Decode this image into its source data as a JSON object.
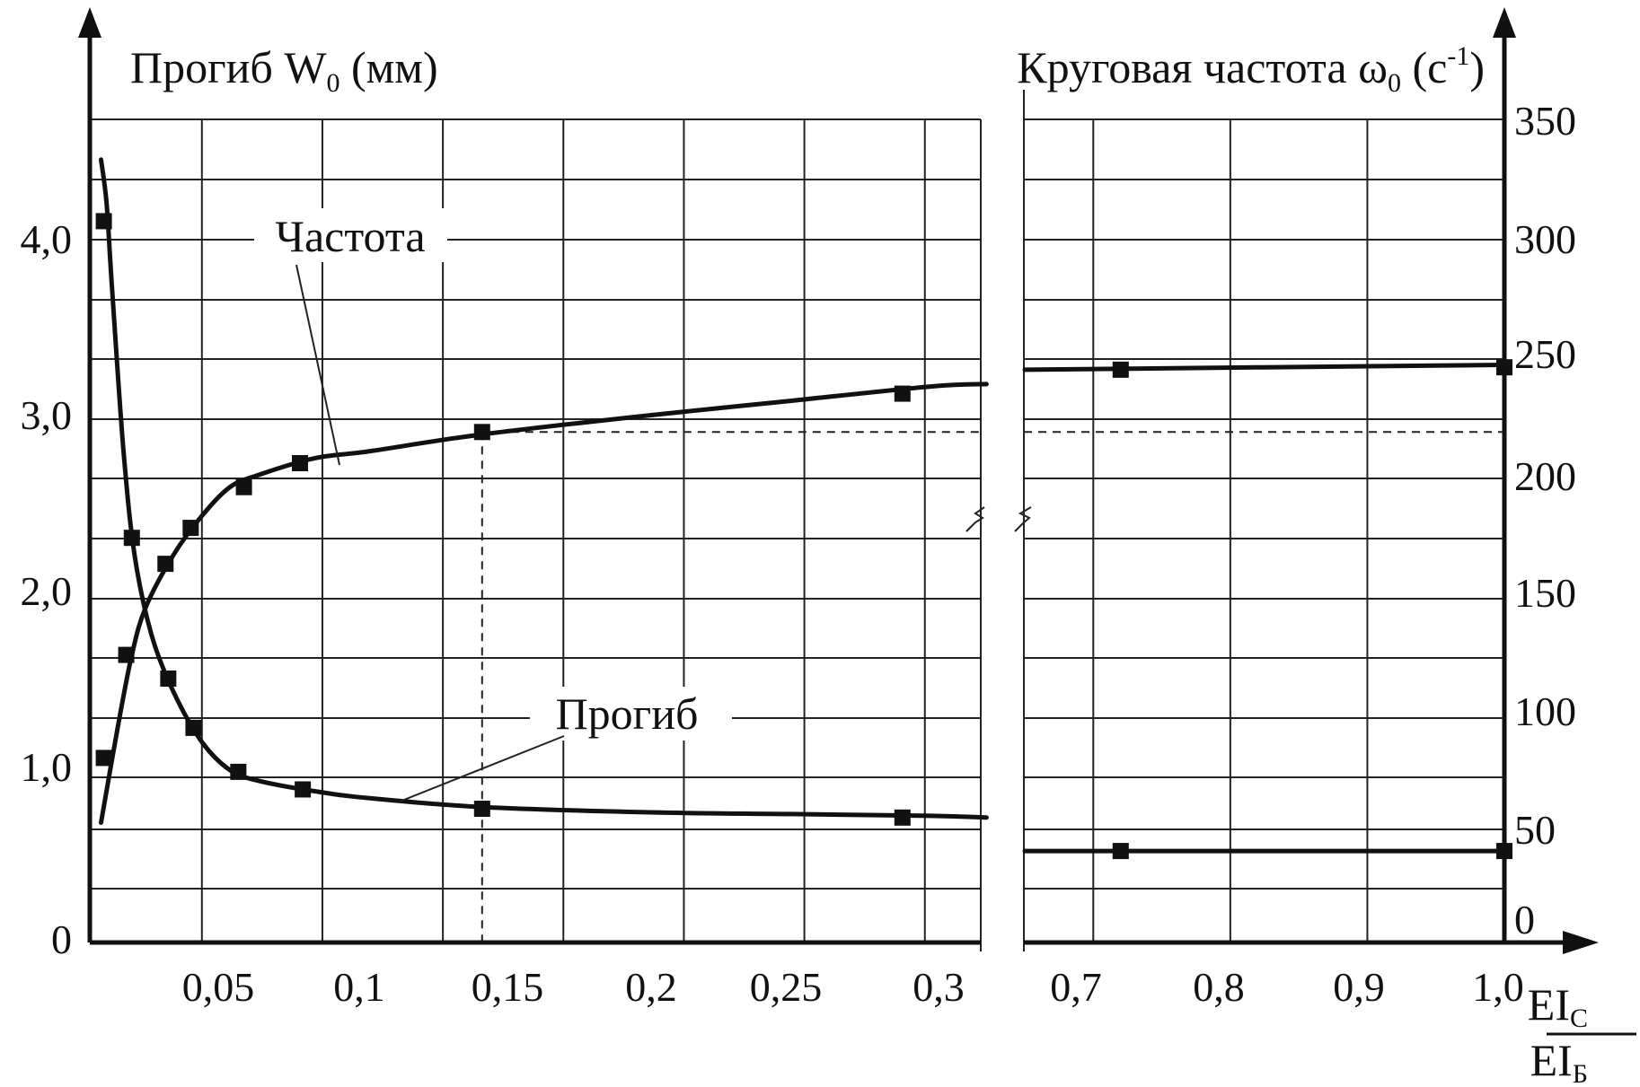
{
  "chart_data": {
    "type": "line",
    "left_axis_title": {
      "text": "Прогиб W",
      "sub": "0",
      "tail": " (мм)"
    },
    "right_axis_title": {
      "text": "Круговая частота ω",
      "sub": "0",
      "mid": " (c",
      "sup": "-1",
      "tail": ")"
    },
    "x_label": {
      "numerator": "EI",
      "numerator_sub": "C",
      "denominator": "EI",
      "denominator_sub": "Б"
    },
    "x_ticks_left": [
      "0,05",
      "0,1",
      "0,15",
      "0,2",
      "0,25",
      "0,3"
    ],
    "x_ticks_right": [
      "0,7",
      "0,8",
      "0,9",
      "1,0"
    ],
    "y_left_ticks": [
      "0",
      "1,0",
      "2,0",
      "3,0",
      "4,0"
    ],
    "y_right_ticks": [
      "0",
      "50",
      "100",
      "150",
      "200",
      "250",
      "300",
      "350"
    ],
    "x_break": [
      0.32,
      0.65
    ],
    "y_left_range": [
      0,
      4.6
    ],
    "y_right_range": [
      0,
      350
    ],
    "series": [
      {
        "name": "Частота",
        "axis": "right",
        "curve_x": [
          0.004,
          0.01,
          0.015,
          0.02,
          0.03,
          0.04,
          0.05,
          0.06,
          0.08,
          0.1,
          0.14,
          0.2,
          0.25,
          0.3,
          0.32
        ],
        "curve_y": [
          50,
          90,
          120,
          140,
          162,
          178,
          190,
          195,
          202,
          205,
          212,
          220,
          226,
          232,
          233
        ],
        "curve_x_right": [
          0.65,
          1.0
        ],
        "curve_y_right": [
          239,
          241
        ],
        "markers_x": [
          0.005,
          0.013,
          0.027,
          0.036,
          0.055,
          0.075,
          0.14,
          0.29,
          0.72,
          1.0
        ],
        "markers_y": [
          77,
          120,
          158,
          173,
          190,
          200,
          213,
          229,
          239,
          240
        ]
      },
      {
        "name": "Прогиб",
        "axis": "left",
        "curve_x": [
          0.004,
          0.006,
          0.008,
          0.012,
          0.016,
          0.022,
          0.03,
          0.04,
          0.05,
          0.06,
          0.08,
          0.1,
          0.14,
          0.2,
          0.25,
          0.3,
          0.32
        ],
        "curve_y": [
          4.45,
          4.2,
          3.7,
          2.8,
          2.2,
          1.75,
          1.42,
          1.14,
          0.98,
          0.92,
          0.86,
          0.82,
          0.77,
          0.74,
          0.73,
          0.72,
          0.71
        ],
        "curve_x_right": [
          0.65,
          1.0
        ],
        "curve_y_right": [
          0.52,
          0.52
        ],
        "markers_x": [
          0.005,
          0.015,
          0.028,
          0.037,
          0.053,
          0.076,
          0.14,
          0.29,
          0.72,
          1.0
        ],
        "markers_y": [
          4.1,
          2.3,
          1.5,
          1.22,
          0.97,
          0.87,
          0.76,
          0.71,
          0.52,
          0.52
        ]
      }
    ],
    "reference_line": {
      "x": 0.14,
      "y_right": 213
    },
    "grid": true,
    "colors": {
      "ink": "#111111",
      "background": "#ffffff"
    }
  }
}
